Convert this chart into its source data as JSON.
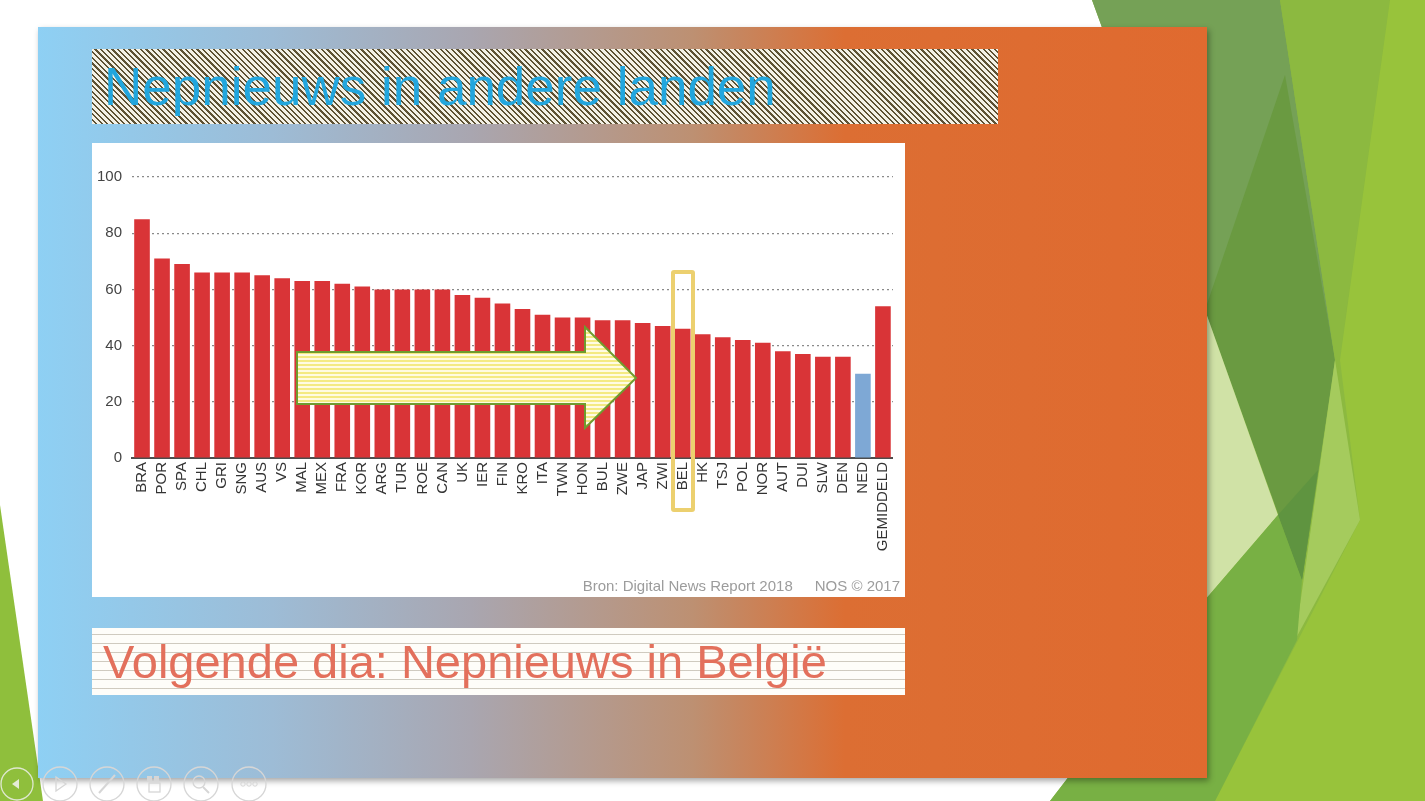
{
  "chart_data": {
    "type": "bar",
    "title": "Nepnieuws in andere landen",
    "categories": [
      "BRA",
      "POR",
      "SPA",
      "CHL",
      "GRI",
      "SNG",
      "AUS",
      "VS",
      "MAL",
      "MEX",
      "FRA",
      "KOR",
      "ARG",
      "TUR",
      "ROE",
      "CAN",
      "UK",
      "IER",
      "FIN",
      "KRO",
      "ITA",
      "TWN",
      "HON",
      "BUL",
      "ZWE",
      "JAP",
      "ZWI",
      "BEL",
      "HK",
      "TSJ",
      "POL",
      "NOR",
      "AUT",
      "DUI",
      "SLW",
      "DEN",
      "NED",
      "GEMIDDELD"
    ],
    "values": [
      85,
      71,
      69,
      66,
      66,
      66,
      65,
      64,
      63,
      63,
      62,
      61,
      60,
      60,
      60,
      60,
      58,
      57,
      55,
      53,
      51,
      50,
      50,
      49,
      49,
      48,
      47,
      46,
      44,
      43,
      42,
      41,
      38,
      37,
      36,
      36,
      30,
      54
    ],
    "colors": [
      "#d93437",
      "#d93437",
      "#d93437",
      "#d93437",
      "#d93437",
      "#d93437",
      "#d93437",
      "#d93437",
      "#d93437",
      "#d93437",
      "#d93437",
      "#d93437",
      "#d93437",
      "#d93437",
      "#d93437",
      "#d93437",
      "#d93437",
      "#d93437",
      "#d93437",
      "#d93437",
      "#d93437",
      "#d93437",
      "#d93437",
      "#d93437",
      "#d93437",
      "#d93437",
      "#d93437",
      "#d93437",
      "#d93437",
      "#d93437",
      "#d93437",
      "#d93437",
      "#d93437",
      "#d93437",
      "#d93437",
      "#d93437",
      "#7ea8d5",
      "#d93437"
    ],
    "ylim": [
      0,
      100
    ],
    "yticks": [
      0,
      20,
      40,
      60,
      80,
      100
    ],
    "grid": "y",
    "annotations": [
      "Volgende dia: Nepnieuws in België",
      "Bron: Digital News Report 2018",
      "NOS © 2017"
    ]
  }
}
